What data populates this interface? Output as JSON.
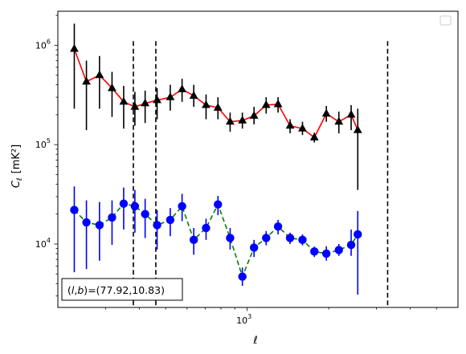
{
  "chart_data": {
    "type": "scatter",
    "xscale": "log",
    "yscale": "log",
    "xlim": [
      200,
      6000
    ],
    "ylim": [
      2300,
      2200000
    ],
    "xlabel": "ℓ",
    "ylabel_main": "C",
    "ylabel_sub": "ℓ",
    "ylabel_unit": "[mK²]",
    "xticks": [
      {
        "value": 1000,
        "base": "10",
        "exp": "3"
      }
    ],
    "yticks": [
      {
        "value": 10000,
        "base": "10",
        "exp": "4"
      },
      {
        "value": 100000,
        "base": "10",
        "exp": "5"
      },
      {
        "value": 1000000,
        "base": "10",
        "exp": "6"
      }
    ],
    "vlines": [
      380,
      460,
      3300
    ],
    "annotation": "(l,b)=(77.92,10.83)",
    "annotation_parts": {
      "l": "l",
      "b": "b",
      "values": "=(77.92,10.83)"
    },
    "legend": "empty box, upper right",
    "series": [
      {
        "marker": "triangle",
        "marker_color": "#000000",
        "line_color": "#ff0000",
        "line_style": "solid",
        "points": [
          {
            "x": 230,
            "y": 920000,
            "lo": 230000,
            "hi": 1650000
          },
          {
            "x": 255,
            "y": 430000,
            "lo": 140000,
            "hi": 700000
          },
          {
            "x": 285,
            "y": 500000,
            "lo": 230000,
            "hi": 780000
          },
          {
            "x": 317,
            "y": 370000,
            "lo": 190000,
            "hi": 540000
          },
          {
            "x": 350,
            "y": 270000,
            "lo": 145000,
            "hi": 390000
          },
          {
            "x": 385,
            "y": 240000,
            "lo": 155000,
            "hi": 340000
          },
          {
            "x": 420,
            "y": 260000,
            "lo": 165000,
            "hi": 350000
          },
          {
            "x": 465,
            "y": 280000,
            "lo": 180000,
            "hi": 370000
          },
          {
            "x": 520,
            "y": 300000,
            "lo": 220000,
            "hi": 400000
          },
          {
            "x": 575,
            "y": 360000,
            "lo": 270000,
            "hi": 460000
          },
          {
            "x": 635,
            "y": 310000,
            "lo": 240000,
            "hi": 400000
          },
          {
            "x": 705,
            "y": 250000,
            "lo": 180000,
            "hi": 320000
          },
          {
            "x": 780,
            "y": 235000,
            "lo": 180000,
            "hi": 300000
          },
          {
            "x": 865,
            "y": 170000,
            "lo": 135000,
            "hi": 210000
          },
          {
            "x": 960,
            "y": 175000,
            "lo": 145000,
            "hi": 210000
          },
          {
            "x": 1060,
            "y": 195000,
            "lo": 160000,
            "hi": 240000
          },
          {
            "x": 1175,
            "y": 250000,
            "lo": 205000,
            "hi": 300000
          },
          {
            "x": 1300,
            "y": 255000,
            "lo": 210000,
            "hi": 300000
          },
          {
            "x": 1440,
            "y": 155000,
            "lo": 130000,
            "hi": 180000
          },
          {
            "x": 1600,
            "y": 145000,
            "lo": 125000,
            "hi": 170000
          },
          {
            "x": 1770,
            "y": 118000,
            "lo": 105000,
            "hi": 132000
          },
          {
            "x": 1960,
            "y": 205000,
            "lo": 170000,
            "hi": 245000
          },
          {
            "x": 2180,
            "y": 170000,
            "lo": 130000,
            "hi": 215000
          },
          {
            "x": 2420,
            "y": 200000,
            "lo": 140000,
            "hi": 250000
          },
          {
            "x": 2560,
            "y": 140000,
            "lo": 35000,
            "hi": 230000
          }
        ]
      },
      {
        "marker": "circle",
        "marker_color": "#0000ff",
        "line_color": "#008000",
        "line_style": "dashed",
        "points": [
          {
            "x": 230,
            "y": 22000,
            "lo": 5200,
            "hi": 38000
          },
          {
            "x": 255,
            "y": 16500,
            "lo": 5600,
            "hi": 27500
          },
          {
            "x": 285,
            "y": 15500,
            "lo": 6800,
            "hi": 26500
          },
          {
            "x": 317,
            "y": 18500,
            "lo": 9800,
            "hi": 27500
          },
          {
            "x": 350,
            "y": 25500,
            "lo": 14000,
            "hi": 37000
          },
          {
            "x": 385,
            "y": 24000,
            "lo": 13000,
            "hi": 35000
          },
          {
            "x": 420,
            "y": 20000,
            "lo": 11500,
            "hi": 28500
          },
          {
            "x": 465,
            "y": 15500,
            "lo": 8800,
            "hi": 22000
          },
          {
            "x": 520,
            "y": 17500,
            "lo": 12000,
            "hi": 23000
          },
          {
            "x": 575,
            "y": 24000,
            "lo": 17000,
            "hi": 32000
          },
          {
            "x": 635,
            "y": 11000,
            "lo": 7800,
            "hi": 14500
          },
          {
            "x": 705,
            "y": 14500,
            "lo": 11000,
            "hi": 18000
          },
          {
            "x": 780,
            "y": 25000,
            "lo": 19500,
            "hi": 30500
          },
          {
            "x": 865,
            "y": 11500,
            "lo": 8800,
            "hi": 14500
          },
          {
            "x": 960,
            "y": 4700,
            "lo": 3800,
            "hi": 5800
          },
          {
            "x": 1060,
            "y": 9200,
            "lo": 7400,
            "hi": 11000
          },
          {
            "x": 1175,
            "y": 11500,
            "lo": 9700,
            "hi": 13500
          },
          {
            "x": 1300,
            "y": 15000,
            "lo": 12500,
            "hi": 17500
          },
          {
            "x": 1440,
            "y": 11500,
            "lo": 10000,
            "hi": 13000
          },
          {
            "x": 1600,
            "y": 11000,
            "lo": 9700,
            "hi": 12500
          },
          {
            "x": 1770,
            "y": 8400,
            "lo": 7400,
            "hi": 9400
          },
          {
            "x": 1960,
            "y": 8000,
            "lo": 6800,
            "hi": 9500
          },
          {
            "x": 2180,
            "y": 8700,
            "lo": 7600,
            "hi": 10000
          },
          {
            "x": 2420,
            "y": 9800,
            "lo": 7600,
            "hi": 14000
          },
          {
            "x": 2560,
            "y": 12500,
            "lo": 3100,
            "hi": 21500
          }
        ]
      }
    ]
  }
}
